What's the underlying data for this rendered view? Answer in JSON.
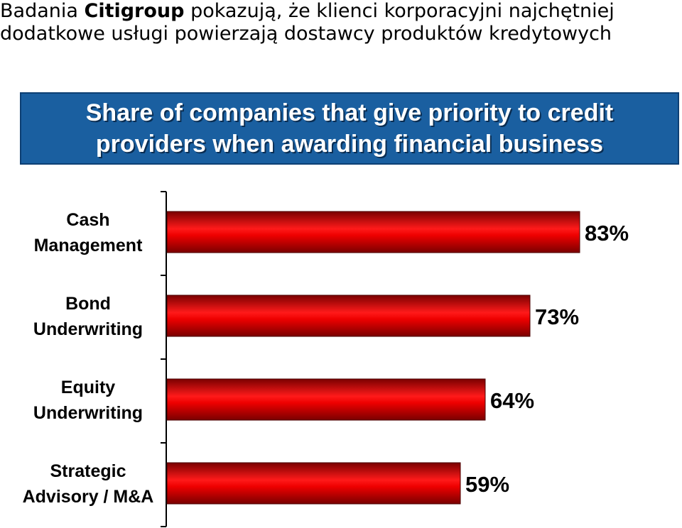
{
  "header": {
    "title_part1": "Badania ",
    "title_brand": "Citigroup",
    "title_part2": " pokazują, że klienci korporacyjni najchętniej",
    "title_line2": "dodatkowe usługi powierzają dostawcy produktów kredytowych"
  },
  "chart_data": {
    "type": "bar",
    "orientation": "horizontal",
    "title_lines": [
      "Share of companies that give priority to credit",
      "providers when awarding financial business"
    ],
    "categories": [
      [
        "Cash",
        "Management"
      ],
      [
        "Bond",
        "Underwriting"
      ],
      [
        "Equity",
        "Underwriting"
      ],
      [
        "Strategic",
        "Advisory / M&A"
      ]
    ],
    "values": [
      83,
      73,
      64,
      59
    ],
    "value_labels": [
      "83%",
      "73%",
      "64%",
      "59%"
    ],
    "xlim": [
      0,
      100
    ],
    "grid": false,
    "colors": {
      "bar": "#ee0000",
      "bar_dark": "#7a0000",
      "banner": "#1a5fa0",
      "banner_text": "#ffffff"
    }
  }
}
